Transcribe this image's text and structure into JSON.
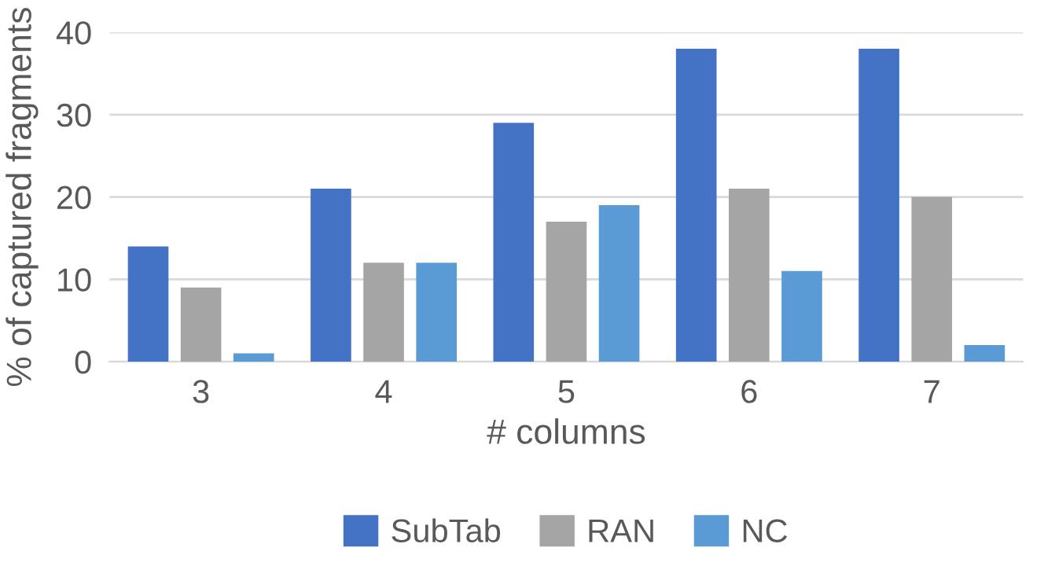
{
  "chart_data": {
    "type": "bar",
    "xlabel": "# columns",
    "ylabel": "% of captured fragments",
    "categories": [
      "3",
      "4",
      "5",
      "6",
      "7"
    ],
    "series": [
      {
        "name": "SubTab",
        "color": "#4472c4",
        "values": [
          14,
          21,
          29,
          38,
          38
        ]
      },
      {
        "name": "RAN",
        "color": "#a5a5a5",
        "values": [
          9,
          12,
          17,
          21,
          20
        ]
      },
      {
        "name": "NC",
        "color": "#5b9bd5",
        "values": [
          1,
          12,
          19,
          11,
          2
        ]
      }
    ],
    "ylim": [
      0,
      40
    ],
    "yticks": [
      0,
      10,
      20,
      30,
      40
    ],
    "grid": "y",
    "legend": "bottom"
  }
}
